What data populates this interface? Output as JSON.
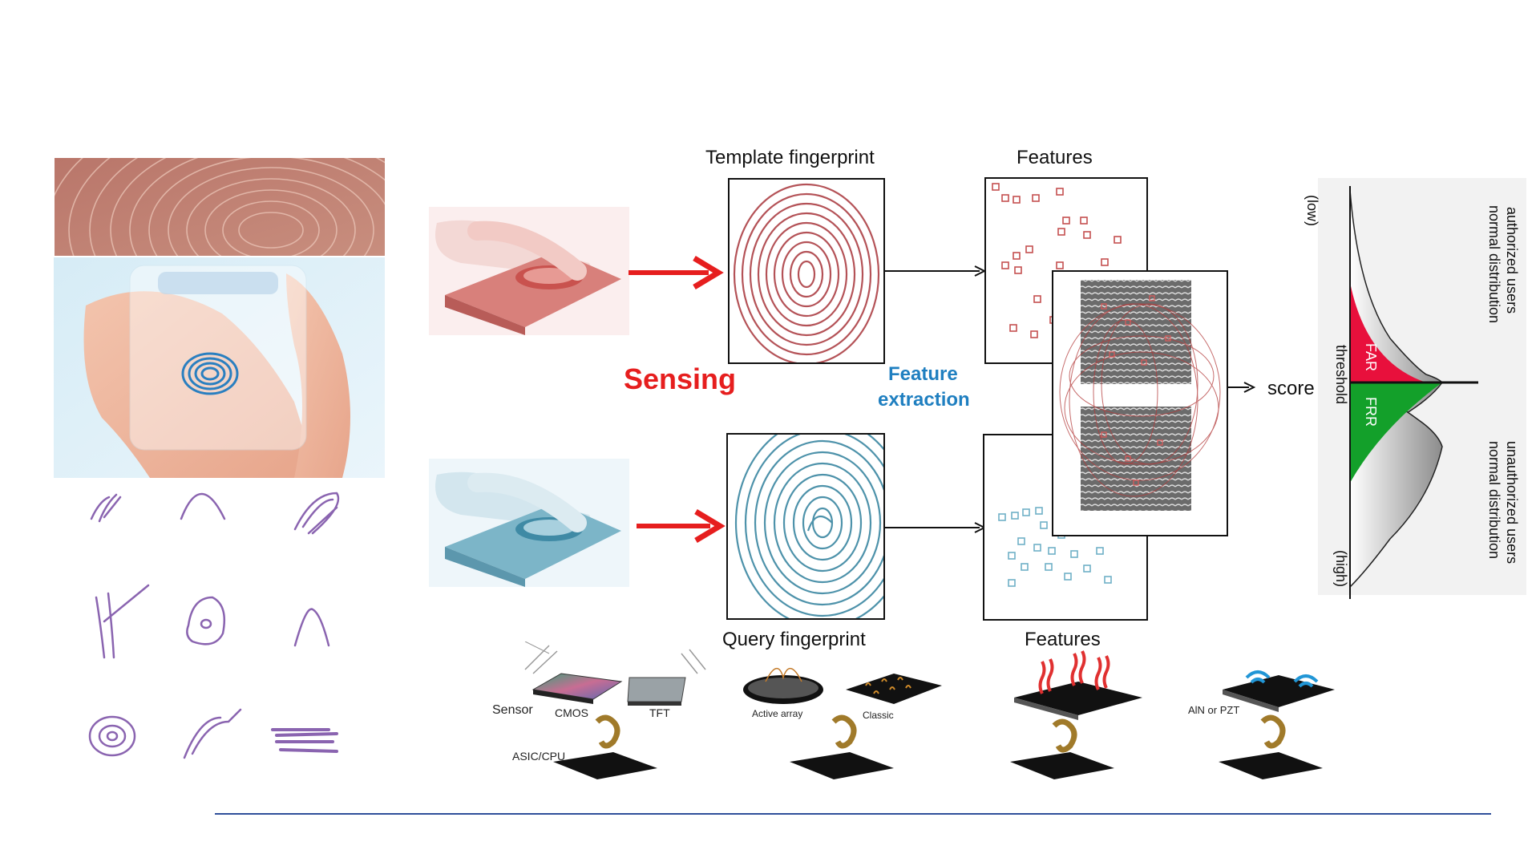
{
  "diagram": {
    "template_label": "Template fingerprint",
    "query_label": "Query fingerprint",
    "features_top_label": "Features",
    "features_bottom_label": "Features",
    "sensing_label": "Sensing",
    "feature_extraction_line1": "Feature",
    "feature_extraction_line2": "extraction",
    "score_label": "score"
  },
  "distribution": {
    "low_label": "(low)",
    "high_label": "(high)",
    "threshold_label": "threshold",
    "far_label": "FAR",
    "frr_label": "FRR",
    "authorized_line1": "authorized users",
    "authorized_line2": "normal distribution",
    "unauthorized_line1": "unauthorized users",
    "unauthorized_line2": "normal distribution",
    "far_color": "#e8103c",
    "frr_color": "#13a02a"
  },
  "sensors": {
    "sensor_label": "Sensor",
    "cmos_label": "CMOS",
    "tft_label": "TFT",
    "asic_label": "ASIC/CPU",
    "active_array_label": "Active array",
    "classic_label": "Classic",
    "aln_label": "AlN or PZT"
  },
  "colors": {
    "accent_red": "#e61e1e",
    "accent_blue": "#1f7fc0",
    "divider": "#2f4f9a"
  }
}
